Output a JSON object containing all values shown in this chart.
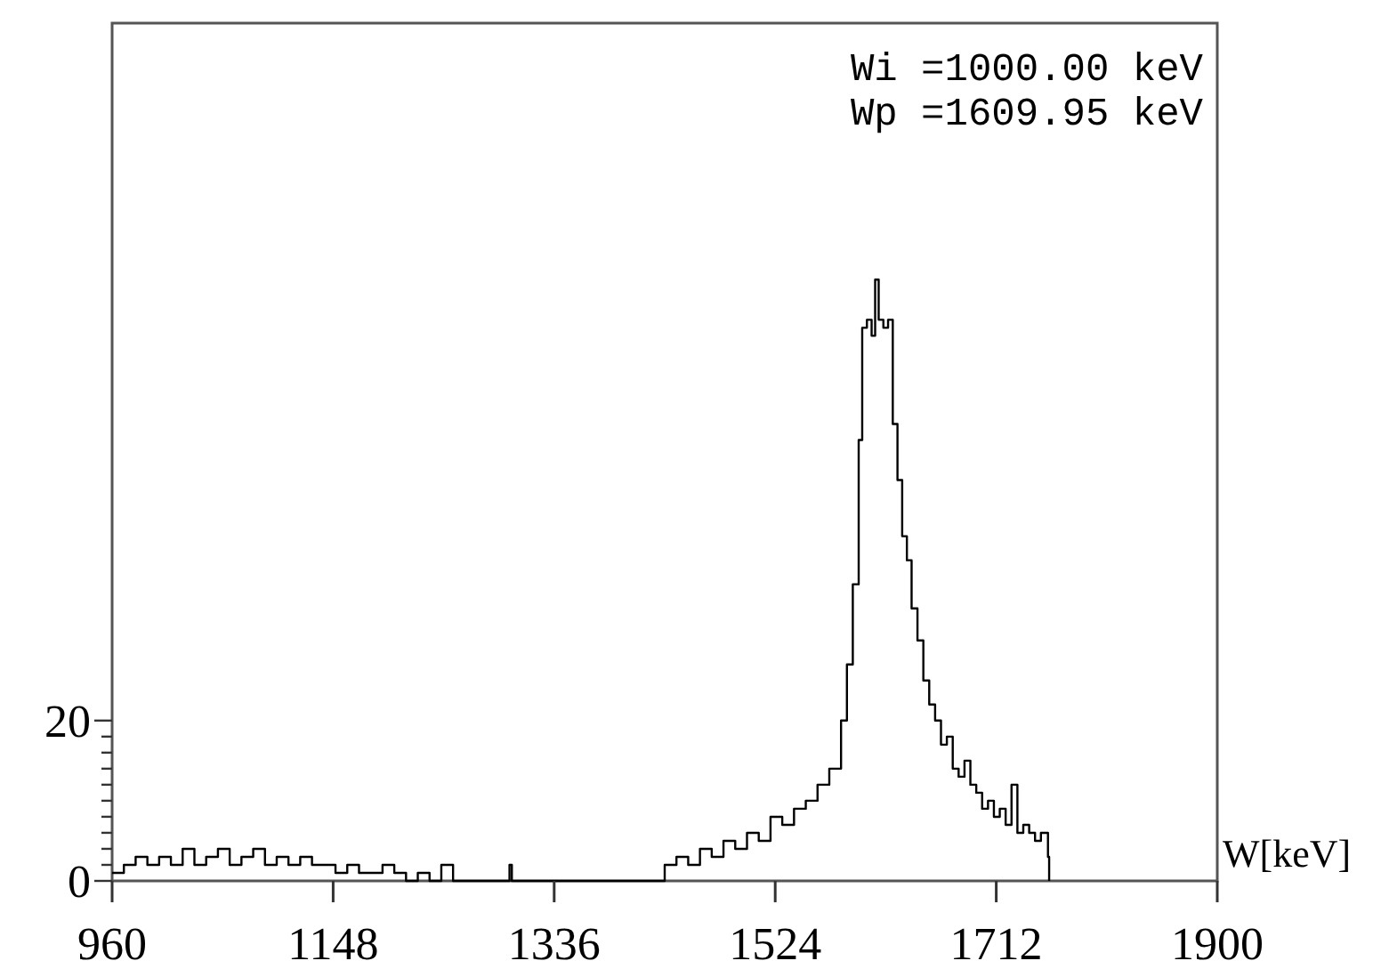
{
  "chart_data": {
    "type": "step",
    "xlabel": "W[keV]",
    "annotations": [
      "Wi =1000.00 keV",
      "Wp =1609.95 keV"
    ],
    "x": [
      960,
      970,
      980,
      990,
      1000,
      1010,
      1020,
      1030,
      1040,
      1050,
      1060,
      1070,
      1080,
      1090,
      1100,
      1110,
      1120,
      1130,
      1140,
      1150,
      1160,
      1170,
      1180,
      1190,
      1200,
      1210,
      1220,
      1230,
      1240,
      1250,
      1270,
      1280,
      1298,
      1300,
      1340,
      1380,
      1420,
      1430,
      1440,
      1450,
      1460,
      1470,
      1480,
      1490,
      1500,
      1510,
      1520,
      1530,
      1540,
      1550,
      1560,
      1570,
      1580,
      1585,
      1590,
      1595,
      1598,
      1602,
      1606,
      1609,
      1612,
      1616,
      1620,
      1624,
      1628,
      1632,
      1636,
      1640,
      1645,
      1650,
      1655,
      1660,
      1665,
      1670,
      1675,
      1680,
      1685,
      1690,
      1695,
      1700,
      1705,
      1710,
      1715,
      1720,
      1725,
      1730,
      1735,
      1740,
      1745,
      1750,
      1756,
      1757
    ],
    "series": [
      {
        "color": "#000000",
        "values": [
          1,
          2,
          3,
          2,
          3,
          2,
          4,
          2,
          3,
          4,
          2,
          3,
          4,
          2,
          3,
          2,
          3,
          2,
          2,
          1,
          2,
          1,
          1,
          2,
          1,
          0,
          1,
          0,
          2,
          0,
          0,
          0,
          2,
          0,
          0,
          0,
          0,
          2,
          3,
          2,
          4,
          3,
          5,
          4,
          6,
          5,
          8,
          7,
          9,
          10,
          12,
          14,
          20,
          27,
          37,
          55,
          69,
          70,
          68,
          75,
          70,
          69,
          70,
          57,
          50,
          43,
          40,
          34,
          30,
          25,
          22,
          20,
          17,
          18,
          14,
          13,
          15,
          12,
          11,
          9,
          10,
          8,
          9,
          7,
          12,
          6,
          7,
          6,
          5,
          6,
          3,
          0
        ]
      }
    ],
    "xlim": [
      960,
      1900
    ],
    "xticks": [
      960,
      1148,
      1336,
      1524,
      1712,
      1900
    ],
    "ylim": [
      0,
      107
    ],
    "yticks": [
      0,
      {
        "value": 2,
        "label": null
      },
      {
        "value": 4,
        "label": null
      },
      {
        "value": 6,
        "label": null
      },
      {
        "value": 8,
        "label": null
      },
      {
        "value": 10,
        "label": null
      },
      {
        "value": 12,
        "label": null
      },
      {
        "value": 14,
        "label": null
      },
      {
        "value": 16,
        "label": null
      },
      {
        "value": 18,
        "label": null
      },
      20
    ],
    "grid": false
  }
}
